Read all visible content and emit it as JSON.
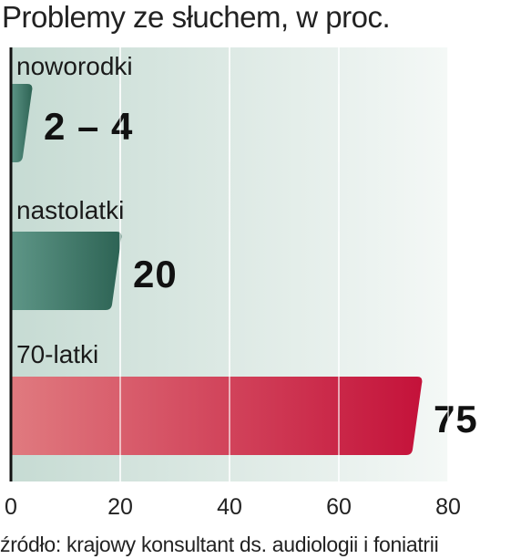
{
  "chart_data": {
    "type": "bar",
    "orientation": "horizontal",
    "title": "Problemy ze słuchem, w proc.",
    "categories": [
      "noworodki",
      "nastolatki",
      "70-latki"
    ],
    "values": [
      3,
      20,
      75
    ],
    "value_labels": [
      "2 – 4",
      "20",
      "75"
    ],
    "bar_colors": [
      "#3f7566",
      "#3f7566",
      "#c8163a"
    ],
    "xlim": [
      0,
      80
    ],
    "xticks": [
      0,
      20,
      40,
      60,
      80
    ],
    "grid": true,
    "background_color": "#dde9e4",
    "source": "źródło: krajowy konsultant ds. audiologii i foniatrii"
  }
}
